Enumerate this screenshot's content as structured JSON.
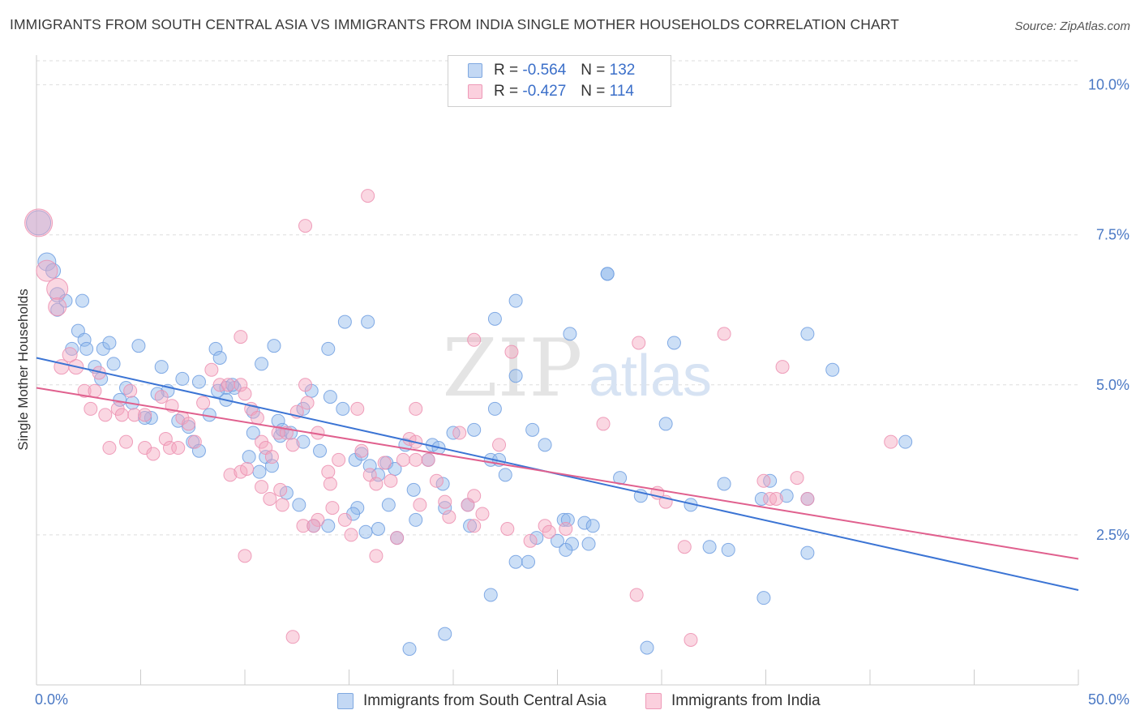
{
  "title": "IMMIGRANTS FROM SOUTH CENTRAL ASIA VS IMMIGRANTS FROM INDIA SINGLE MOTHER HOUSEHOLDS CORRELATION CHART",
  "source": "Source: ZipAtlas.com",
  "watermark": {
    "zip": "ZIP",
    "atlas": "atlas"
  },
  "legend": {
    "series1": {
      "r_label": "R = ",
      "r_value": "-0.564",
      "n_label": "N = ",
      "n_value": "132"
    },
    "series2": {
      "r_label": "R = ",
      "r_value": "-0.427",
      "n_label": "N = ",
      "n_value": "114"
    }
  },
  "chart_data": {
    "type": "scatter",
    "ylabel": "Single Mother Households",
    "xlabel": "",
    "xlim": [
      0,
      50
    ],
    "ylim": [
      0,
      10.4
    ],
    "x_tick_labels": [
      "0.0%",
      "50.0%"
    ],
    "y_ticks": [
      2.5,
      5.0,
      7.5,
      10.0
    ],
    "y_tick_labels": [
      "2.5%",
      "5.0%",
      "7.5%",
      "10.0%"
    ],
    "grid": "horizontal dashed",
    "legend_position": "top-center",
    "series": [
      {
        "name": "Immigrants from South Central Asia",
        "color": "#8fb8ea",
        "trend_color": "#3b74d4",
        "trend": {
          "x": [
            0,
            50
          ],
          "y": [
            5.45,
            1.58
          ]
        },
        "points": [
          [
            0.1,
            7.7,
            14
          ],
          [
            0.5,
            7.05,
            10
          ],
          [
            0.8,
            6.9,
            8
          ],
          [
            1.0,
            6.5,
            8
          ],
          [
            1.0,
            6.25,
            7
          ],
          [
            1.4,
            6.4,
            7
          ],
          [
            2.2,
            6.4,
            7
          ],
          [
            2.0,
            5.9,
            7
          ],
          [
            2.3,
            5.75,
            7
          ],
          [
            1.7,
            5.6,
            7
          ],
          [
            2.4,
            5.6,
            7
          ],
          [
            3.2,
            5.6,
            7
          ],
          [
            3.5,
            5.7,
            7
          ],
          [
            4.9,
            5.65,
            7
          ],
          [
            2.8,
            5.3,
            7
          ],
          [
            3.7,
            5.35,
            7
          ],
          [
            6.0,
            5.3,
            7
          ],
          [
            7.0,
            5.1,
            7
          ],
          [
            7.8,
            5.05,
            7
          ],
          [
            3.1,
            5.1,
            7
          ],
          [
            4.3,
            4.95,
            7
          ],
          [
            6.3,
            4.9,
            7
          ],
          [
            5.8,
            4.85,
            7
          ],
          [
            4.0,
            4.75,
            7
          ],
          [
            4.6,
            4.7,
            7
          ],
          [
            9.1,
            4.95,
            7
          ],
          [
            9.5,
            4.95,
            7
          ],
          [
            8.7,
            4.9,
            7
          ],
          [
            9.1,
            4.75,
            7
          ],
          [
            10.4,
            4.55,
            7
          ],
          [
            8.3,
            4.5,
            7
          ],
          [
            5.5,
            4.45,
            7
          ],
          [
            5.2,
            4.45,
            7
          ],
          [
            6.8,
            4.4,
            7
          ],
          [
            7.3,
            4.3,
            7
          ],
          [
            7.5,
            4.05,
            7
          ],
          [
            7.8,
            3.9,
            7
          ],
          [
            10.4,
            4.2,
            7
          ],
          [
            11.6,
            4.4,
            7
          ],
          [
            11.7,
            4.15,
            7
          ],
          [
            11.8,
            4.25,
            7
          ],
          [
            12.8,
            4.05,
            7
          ],
          [
            10.2,
            3.8,
            7
          ],
          [
            11.0,
            3.8,
            7
          ],
          [
            11.3,
            3.65,
            7
          ],
          [
            10.7,
            3.55,
            7
          ],
          [
            12.0,
            3.2,
            7
          ],
          [
            12.6,
            3.0,
            7
          ],
          [
            13.3,
            2.65,
            7
          ],
          [
            14.0,
            2.65,
            7
          ],
          [
            13.2,
            4.9,
            7
          ],
          [
            14.1,
            4.8,
            7
          ],
          [
            12.8,
            4.6,
            7
          ],
          [
            11.4,
            5.65,
            7
          ],
          [
            10.8,
            5.35,
            7
          ],
          [
            8.6,
            5.6,
            7
          ],
          [
            8.8,
            5.45,
            7
          ],
          [
            14.0,
            5.6,
            7
          ],
          [
            14.7,
            4.6,
            7
          ],
          [
            15.3,
            3.75,
            7
          ],
          [
            15.6,
            3.85,
            7
          ],
          [
            16.0,
            3.65,
            7
          ],
          [
            16.4,
            3.5,
            7
          ],
          [
            15.4,
            2.95,
            7
          ],
          [
            15.2,
            2.85,
            7
          ],
          [
            15.8,
            2.55,
            7
          ],
          [
            16.4,
            2.6,
            7
          ],
          [
            16.8,
            3.7,
            7
          ],
          [
            17.2,
            3.6,
            7
          ],
          [
            17.3,
            2.45,
            7
          ],
          [
            17.7,
            4.0,
            7
          ],
          [
            18.1,
            3.25,
            7
          ],
          [
            18.2,
            2.75,
            7
          ],
          [
            18.8,
            3.75,
            7
          ],
          [
            19.0,
            4.0,
            7
          ],
          [
            19.3,
            3.95,
            7
          ],
          [
            19.5,
            3.35,
            7
          ],
          [
            19.6,
            2.95,
            7
          ],
          [
            20.0,
            4.2,
            7
          ],
          [
            20.7,
            3.0,
            7
          ],
          [
            20.8,
            2.65,
            7
          ],
          [
            21.0,
            4.25,
            7
          ],
          [
            21.8,
            3.75,
            7
          ],
          [
            22.2,
            3.75,
            7
          ],
          [
            22.0,
            4.6,
            7
          ],
          [
            22.5,
            3.5,
            7
          ],
          [
            23.0,
            5.15,
            7
          ],
          [
            23.6,
            2.05,
            7
          ],
          [
            23.8,
            4.25,
            7
          ],
          [
            24.0,
            2.45,
            7
          ],
          [
            24.4,
            4.0,
            7
          ],
          [
            25.0,
            2.4,
            7
          ],
          [
            25.3,
            2.75,
            7
          ],
          [
            25.7,
            2.35,
            7
          ],
          [
            25.4,
            2.25,
            7
          ],
          [
            26.3,
            2.7,
            7
          ],
          [
            26.7,
            2.65,
            7
          ],
          [
            26.5,
            2.35,
            7
          ],
          [
            14.8,
            6.05,
            7
          ],
          [
            15.9,
            6.05,
            7
          ],
          [
            22.0,
            6.1,
            7
          ],
          [
            23.0,
            6.4,
            7
          ],
          [
            25.6,
            5.85,
            7
          ],
          [
            27.4,
            6.85,
            7
          ],
          [
            28.0,
            3.45,
            7
          ],
          [
            29.0,
            3.15,
            7
          ],
          [
            30.6,
            5.7,
            7
          ],
          [
            30.2,
            4.35,
            7
          ],
          [
            31.4,
            3.0,
            7
          ],
          [
            32.3,
            2.3,
            7
          ],
          [
            33.0,
            3.35,
            7
          ],
          [
            33.2,
            2.25,
            7
          ],
          [
            34.9,
            1.45,
            7
          ],
          [
            35.2,
            3.4,
            7
          ],
          [
            34.8,
            3.1,
            7
          ],
          [
            36.0,
            3.15,
            7
          ],
          [
            37.0,
            3.1,
            7
          ],
          [
            37.0,
            5.85,
            7
          ],
          [
            37.0,
            2.2,
            7
          ],
          [
            38.2,
            5.25,
            7
          ],
          [
            41.7,
            4.05,
            7
          ],
          [
            27.4,
            6.85,
            7
          ],
          [
            21.8,
            1.5,
            7
          ],
          [
            19.6,
            0.85,
            7
          ],
          [
            17.9,
            0.6,
            7
          ],
          [
            29.3,
            0.62,
            7
          ],
          [
            23.0,
            2.05,
            7
          ],
          [
            25.5,
            2.75,
            7
          ],
          [
            16.9,
            3.0,
            7
          ],
          [
            12.2,
            4.2,
            7
          ],
          [
            13.6,
            3.9,
            7
          ],
          [
            9.4,
            5.0,
            7
          ]
        ]
      },
      {
        "name": "Immigrants from India",
        "color": "#f4a7bf",
        "trend_color": "#e0608e",
        "trend": {
          "x": [
            0,
            50
          ],
          "y": [
            4.95,
            2.1
          ]
        },
        "points": [
          [
            0.1,
            7.7,
            16
          ],
          [
            0.5,
            6.9,
            12
          ],
          [
            1.0,
            6.6,
            12
          ],
          [
            1.0,
            6.3,
            10
          ],
          [
            1.6,
            5.5,
            8
          ],
          [
            1.2,
            5.3,
            8
          ],
          [
            1.9,
            5.3,
            8
          ],
          [
            3.0,
            5.2,
            7
          ],
          [
            2.3,
            4.9,
            7
          ],
          [
            2.8,
            4.9,
            7
          ],
          [
            2.6,
            4.6,
            7
          ],
          [
            3.3,
            4.5,
            7
          ],
          [
            3.9,
            4.6,
            7
          ],
          [
            4.1,
            4.5,
            7
          ],
          [
            4.5,
            4.9,
            7
          ],
          [
            4.7,
            4.5,
            7
          ],
          [
            5.2,
            4.5,
            7
          ],
          [
            6.0,
            4.8,
            7
          ],
          [
            6.5,
            4.65,
            7
          ],
          [
            7.0,
            4.45,
            7
          ],
          [
            3.5,
            3.95,
            7
          ],
          [
            4.3,
            4.05,
            7
          ],
          [
            5.2,
            3.95,
            7
          ],
          [
            5.6,
            3.85,
            7
          ],
          [
            6.2,
            4.1,
            7
          ],
          [
            6.4,
            3.95,
            7
          ],
          [
            6.8,
            3.95,
            7
          ],
          [
            7.3,
            4.35,
            7
          ],
          [
            7.6,
            4.05,
            7
          ],
          [
            8.0,
            4.7,
            7
          ],
          [
            8.4,
            5.25,
            7
          ],
          [
            8.8,
            5.0,
            7
          ],
          [
            9.2,
            5.0,
            7
          ],
          [
            9.8,
            5.0,
            7
          ],
          [
            10.0,
            4.85,
            7
          ],
          [
            10.3,
            4.6,
            7
          ],
          [
            10.6,
            4.45,
            7
          ],
          [
            10.8,
            4.05,
            7
          ],
          [
            11.0,
            3.95,
            7
          ],
          [
            11.3,
            3.8,
            7
          ],
          [
            11.6,
            4.2,
            7
          ],
          [
            12.0,
            4.2,
            7
          ],
          [
            12.3,
            4.0,
            7
          ],
          [
            12.5,
            4.55,
            7
          ],
          [
            12.9,
            5.0,
            7
          ],
          [
            13.0,
            4.7,
            7
          ],
          [
            13.5,
            4.2,
            7
          ],
          [
            14.0,
            3.55,
            7
          ],
          [
            14.1,
            3.35,
            7
          ],
          [
            14.5,
            3.75,
            7
          ],
          [
            9.3,
            3.5,
            7
          ],
          [
            9.8,
            3.55,
            7
          ],
          [
            10.1,
            3.6,
            7
          ],
          [
            10.8,
            3.3,
            7
          ],
          [
            11.2,
            3.1,
            7
          ],
          [
            11.8,
            3.0,
            7
          ],
          [
            12.8,
            2.65,
            7
          ],
          [
            13.5,
            2.75,
            7
          ],
          [
            14.2,
            2.95,
            7
          ],
          [
            14.8,
            2.75,
            7
          ],
          [
            15.1,
            2.5,
            7
          ],
          [
            15.4,
            4.6,
            7
          ],
          [
            15.6,
            3.9,
            7
          ],
          [
            16.0,
            3.5,
            7
          ],
          [
            16.3,
            3.35,
            7
          ],
          [
            16.7,
            3.7,
            7
          ],
          [
            17.0,
            3.4,
            7
          ],
          [
            17.3,
            2.45,
            7
          ],
          [
            17.6,
            3.75,
            7
          ],
          [
            17.9,
            4.1,
            7
          ],
          [
            18.2,
            4.05,
            7
          ],
          [
            18.4,
            3.0,
            7
          ],
          [
            18.8,
            3.75,
            7
          ],
          [
            19.2,
            3.4,
            7
          ],
          [
            19.6,
            3.05,
            7
          ],
          [
            19.8,
            2.8,
            7
          ],
          [
            20.3,
            4.2,
            7
          ],
          [
            20.7,
            3.0,
            7
          ],
          [
            21.0,
            3.15,
            7
          ],
          [
            21.4,
            2.85,
            7
          ],
          [
            9.8,
            5.8,
            7
          ],
          [
            12.9,
            7.65,
            7
          ],
          [
            15.9,
            8.15,
            7
          ],
          [
            18.2,
            4.6,
            7
          ],
          [
            21.0,
            5.75,
            7
          ],
          [
            22.2,
            4.0,
            7
          ],
          [
            22.6,
            2.6,
            7
          ],
          [
            22.8,
            5.55,
            7
          ],
          [
            23.7,
            2.4,
            7
          ],
          [
            24.4,
            2.65,
            7
          ],
          [
            24.6,
            2.55,
            7
          ],
          [
            25.4,
            2.6,
            7
          ],
          [
            28.9,
            5.7,
            7
          ],
          [
            27.2,
            4.35,
            7
          ],
          [
            28.8,
            1.5,
            7
          ],
          [
            29.8,
            3.2,
            7
          ],
          [
            30.2,
            3.05,
            7
          ],
          [
            31.1,
            2.3,
            7
          ],
          [
            31.4,
            0.75,
            7
          ],
          [
            33.0,
            5.85,
            7
          ],
          [
            34.9,
            3.4,
            7
          ],
          [
            35.2,
            3.1,
            7
          ],
          [
            35.5,
            3.1,
            7
          ],
          [
            36.5,
            3.45,
            7
          ],
          [
            37.0,
            3.1,
            7
          ],
          [
            41.0,
            4.05,
            7
          ],
          [
            35.8,
            5.3,
            7
          ],
          [
            13.3,
            2.65,
            7
          ],
          [
            16.3,
            2.15,
            7
          ],
          [
            12.3,
            0.8,
            7
          ],
          [
            10.0,
            2.15,
            7
          ],
          [
            11.7,
            3.25,
            7
          ],
          [
            18.2,
            3.75,
            7
          ],
          [
            21.0,
            2.65,
            7
          ]
        ]
      }
    ]
  }
}
